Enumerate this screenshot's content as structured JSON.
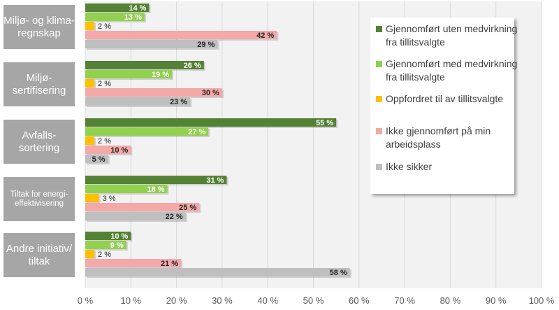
{
  "chart_data": {
    "type": "bar",
    "orientation": "horizontal",
    "categories": [
      "Miljø- og klima-regnskap",
      "Miljø-sertifisering",
      "Avfalls-sortering",
      "Tiltak for energi-effektivisering",
      "Andre initiativ/ tiltak"
    ],
    "series": [
      {
        "name": "Gjennomført uten medvirkning fra tillitsvalgte",
        "color": "#548235",
        "values": [
          14,
          26,
          55,
          31,
          10
        ]
      },
      {
        "name": "Gjennomført med medvirkning fra tillitsvalgte",
        "color": "#92d050",
        "values": [
          13,
          19,
          27,
          18,
          9
        ]
      },
      {
        "name": "Oppfordret til av tillitsvalgte",
        "color": "#ffc000",
        "values": [
          2,
          2,
          2,
          3,
          2
        ]
      },
      {
        "name": "Ikke gjennomført på min arbeidsplass",
        "color": "#f4a8a8",
        "values": [
          42,
          30,
          10,
          25,
          21
        ]
      },
      {
        "name": "Ikke sikker",
        "color": "#bfbfbf",
        "values": [
          29,
          23,
          5,
          22,
          58
        ]
      }
    ],
    "xlim": [
      0,
      100
    ],
    "xticks": [
      "0 %",
      "10 %",
      "20 %",
      "30 %",
      "40 %",
      "50 %",
      "60 %",
      "70 %",
      "80 %",
      "90 %",
      "100 %"
    ],
    "grid": true,
    "legend_placement": "right",
    "value_suffix": " %"
  }
}
